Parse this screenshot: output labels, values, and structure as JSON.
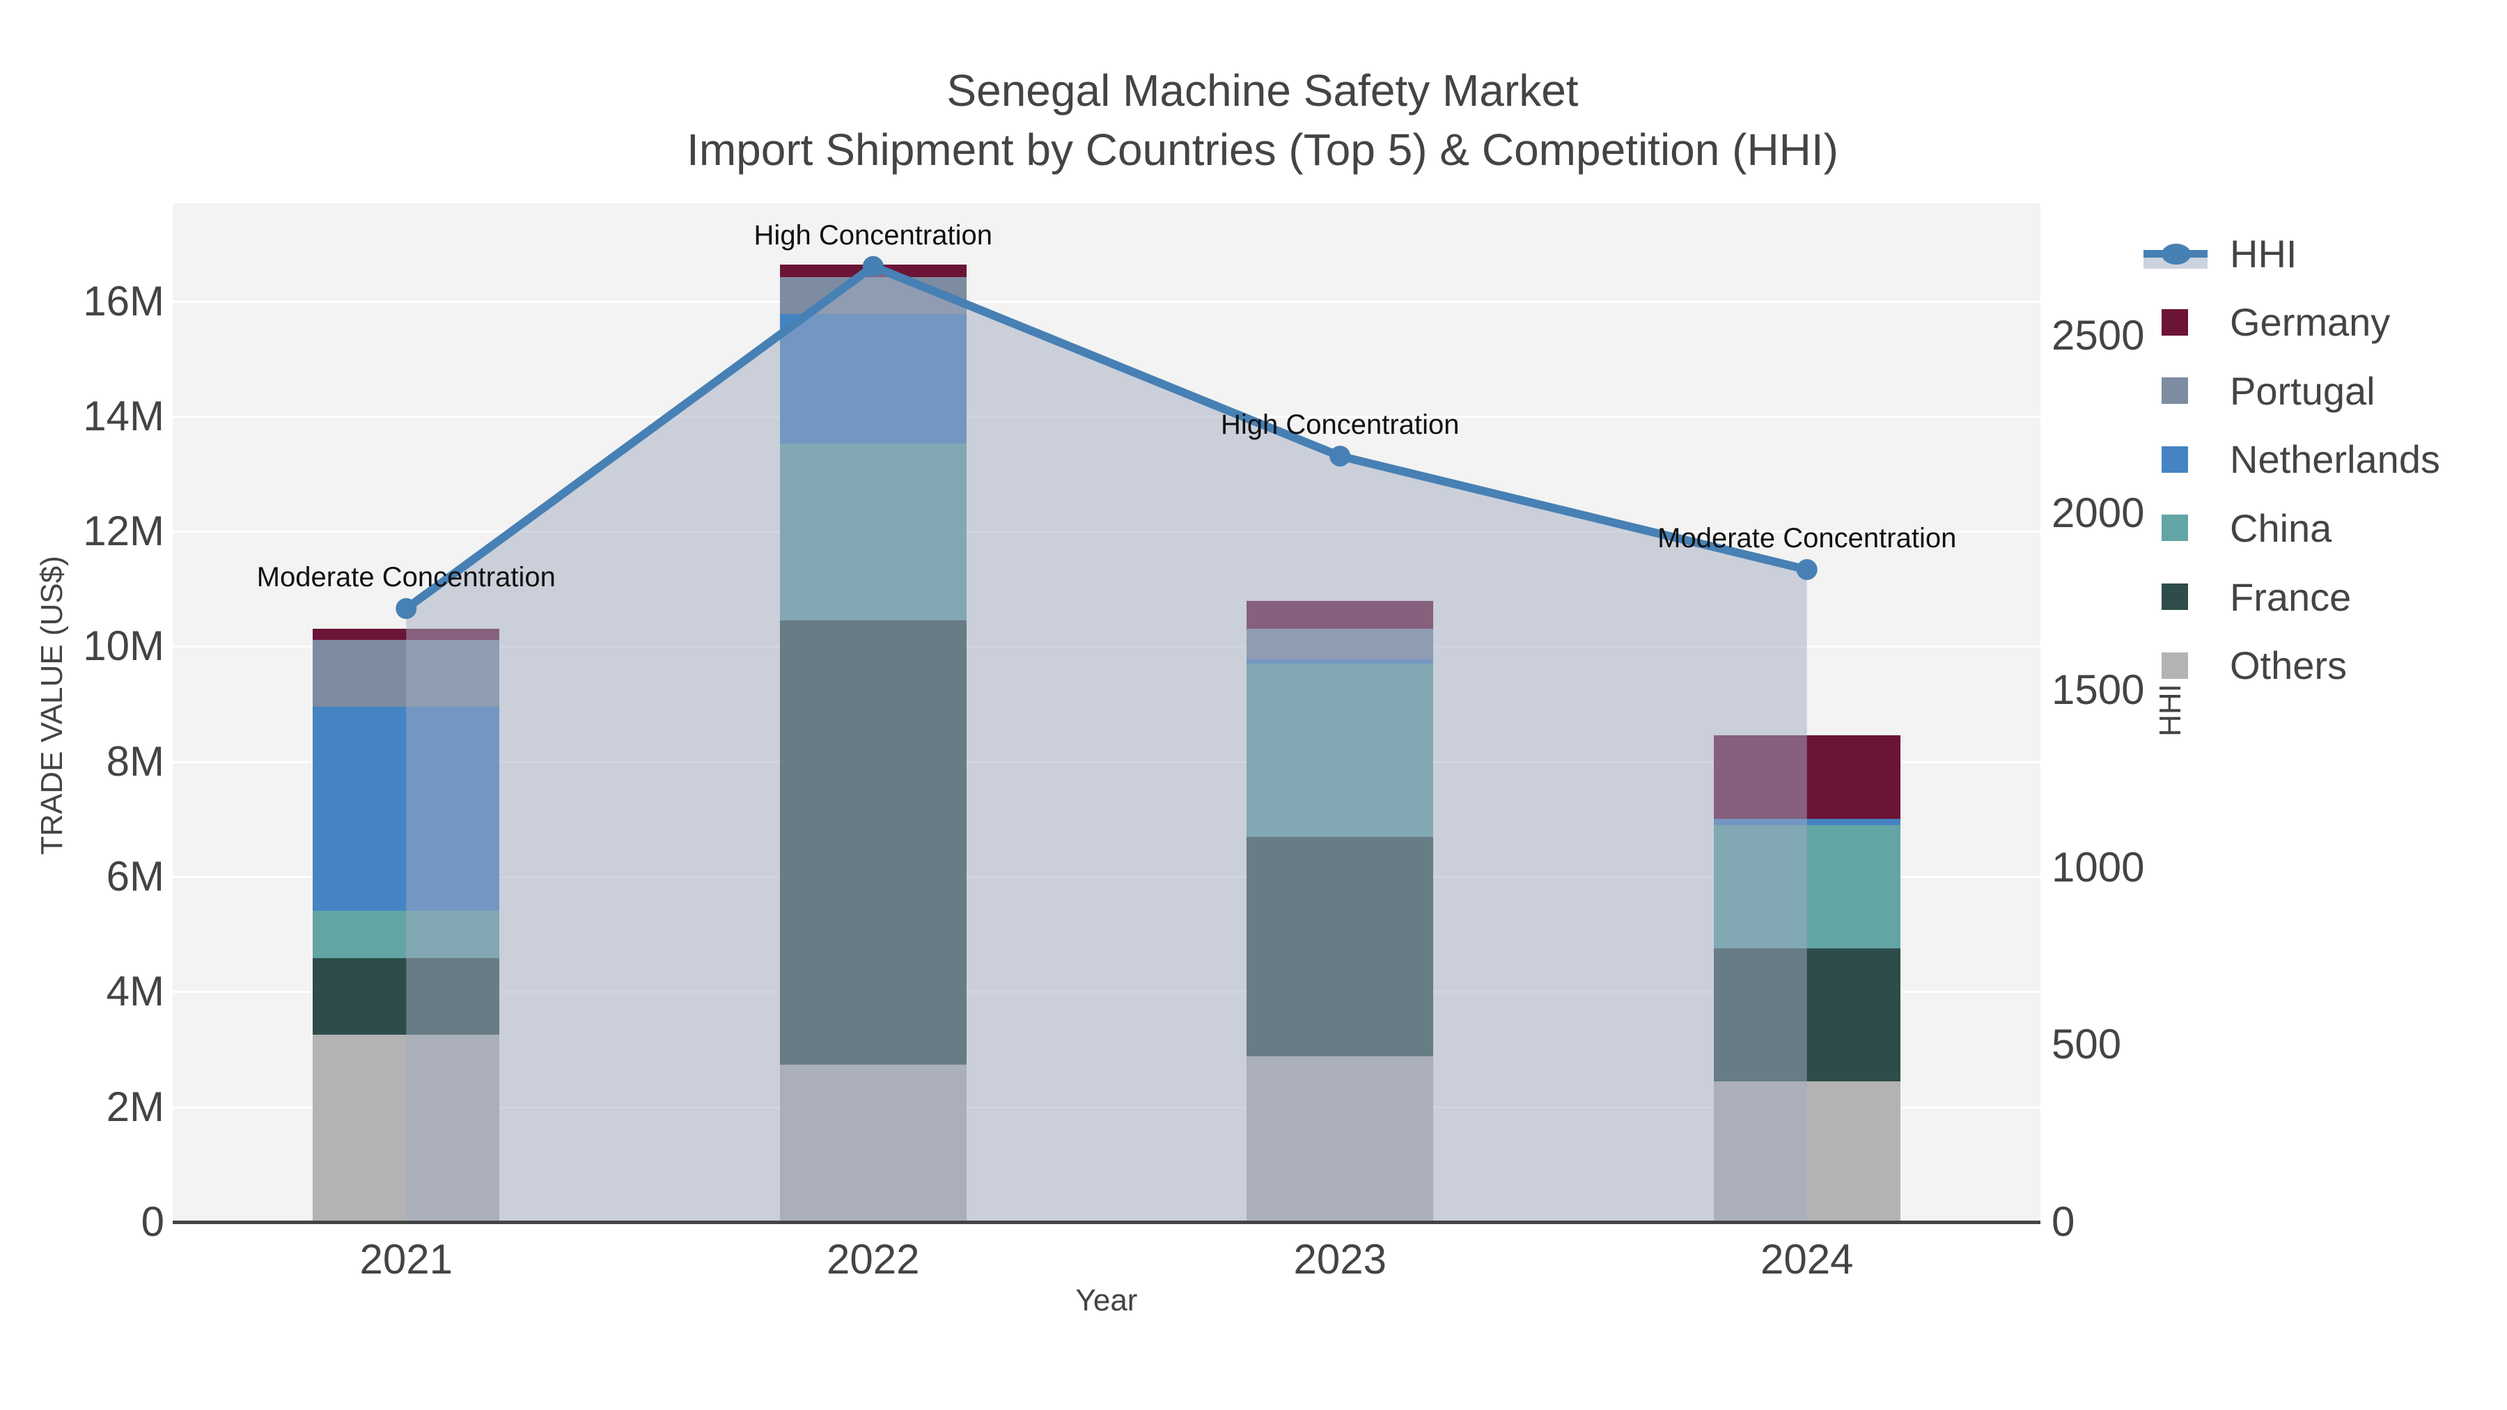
{
  "chart": {
    "title": "Senegal Machine Safety Market",
    "subtitle": "Import Shipment by Countries (Top 5) & Competition (HHI)",
    "x_axis_title": "Year",
    "y_left_axis_title": "TRADE VALUE (US$)",
    "y_right_axis_title": "HHI"
  },
  "chart_data": {
    "type": "bar",
    "stacked": true,
    "categories": [
      "2021",
      "2022",
      "2023",
      "2024"
    ],
    "value_unit": "million US$",
    "series": [
      {
        "name": "Others",
        "color": "#b3b3b3",
        "values": [
          3.26,
          2.73,
          2.88,
          2.45
        ]
      },
      {
        "name": "France",
        "color": "#2e4d4a",
        "values": [
          1.32,
          7.72,
          3.81,
          2.31
        ]
      },
      {
        "name": "China",
        "color": "#63a5a4",
        "values": [
          0.83,
          3.08,
          3.01,
          2.14
        ]
      },
      {
        "name": "Netherlands",
        "color": "#4583c3",
        "values": [
          3.54,
          2.25,
          0.07,
          0.1
        ]
      },
      {
        "name": "Portugal",
        "color": "#7d8ca0",
        "values": [
          1.16,
          0.64,
          0.54,
          0.0
        ]
      },
      {
        "name": "Germany",
        "color": "#6b1437",
        "values": [
          0.2,
          0.21,
          0.48,
          1.46
        ]
      }
    ],
    "bar_totals": [
      10.31,
      16.63,
      10.79,
      8.46
    ],
    "line_series": {
      "name": "HHI",
      "type": "line+area",
      "axis": "right",
      "color": "#4780b4",
      "fill_color": "rgba(161,172,193,0.5)",
      "values": [
        1730,
        2695,
        2160,
        1840
      ]
    },
    "annotations": [
      {
        "category": "2021",
        "text": "Moderate Concentration"
      },
      {
        "category": "2022",
        "text": "High Concentration"
      },
      {
        "category": "2023",
        "text": "High Concentration"
      },
      {
        "category": "2024",
        "text": "Moderate Concentration"
      }
    ],
    "y_left": {
      "max": 17.7,
      "ticks": [
        {
          "v": 0,
          "label": "0"
        },
        {
          "v": 2,
          "label": "2M"
        },
        {
          "v": 4,
          "label": "4M"
        },
        {
          "v": 6,
          "label": "6M"
        },
        {
          "v": 8,
          "label": "8M"
        },
        {
          "v": 10,
          "label": "10M"
        },
        {
          "v": 12,
          "label": "12M"
        },
        {
          "v": 14,
          "label": "14M"
        },
        {
          "v": 16,
          "label": "16M"
        }
      ]
    },
    "y_right": {
      "max": 2873,
      "ticks": [
        {
          "v": 0,
          "label": "0"
        },
        {
          "v": 500,
          "label": "500"
        },
        {
          "v": 1000,
          "label": "1000"
        },
        {
          "v": 1500,
          "label": "1500"
        },
        {
          "v": 2000,
          "label": "2000"
        },
        {
          "v": 2500,
          "label": "2500"
        }
      ]
    },
    "grid": true,
    "legend_position": "top-right",
    "plot_bg": "#f2f3f2",
    "grid_color": "#ffffff"
  },
  "legend": {
    "items": [
      {
        "label": "HHI",
        "type": "line",
        "color": "#4780b4"
      },
      {
        "label": "Germany",
        "type": "square",
        "color": "#6b1437"
      },
      {
        "label": "Portugal",
        "type": "square",
        "color": "#7d8ca0"
      },
      {
        "label": "Netherlands",
        "type": "square",
        "color": "#4583c3"
      },
      {
        "label": "China",
        "type": "square",
        "color": "#63a5a4"
      },
      {
        "label": "France",
        "type": "square",
        "color": "#2e4d4a"
      },
      {
        "label": "Others",
        "type": "square",
        "color": "#b3b3b3"
      }
    ]
  }
}
